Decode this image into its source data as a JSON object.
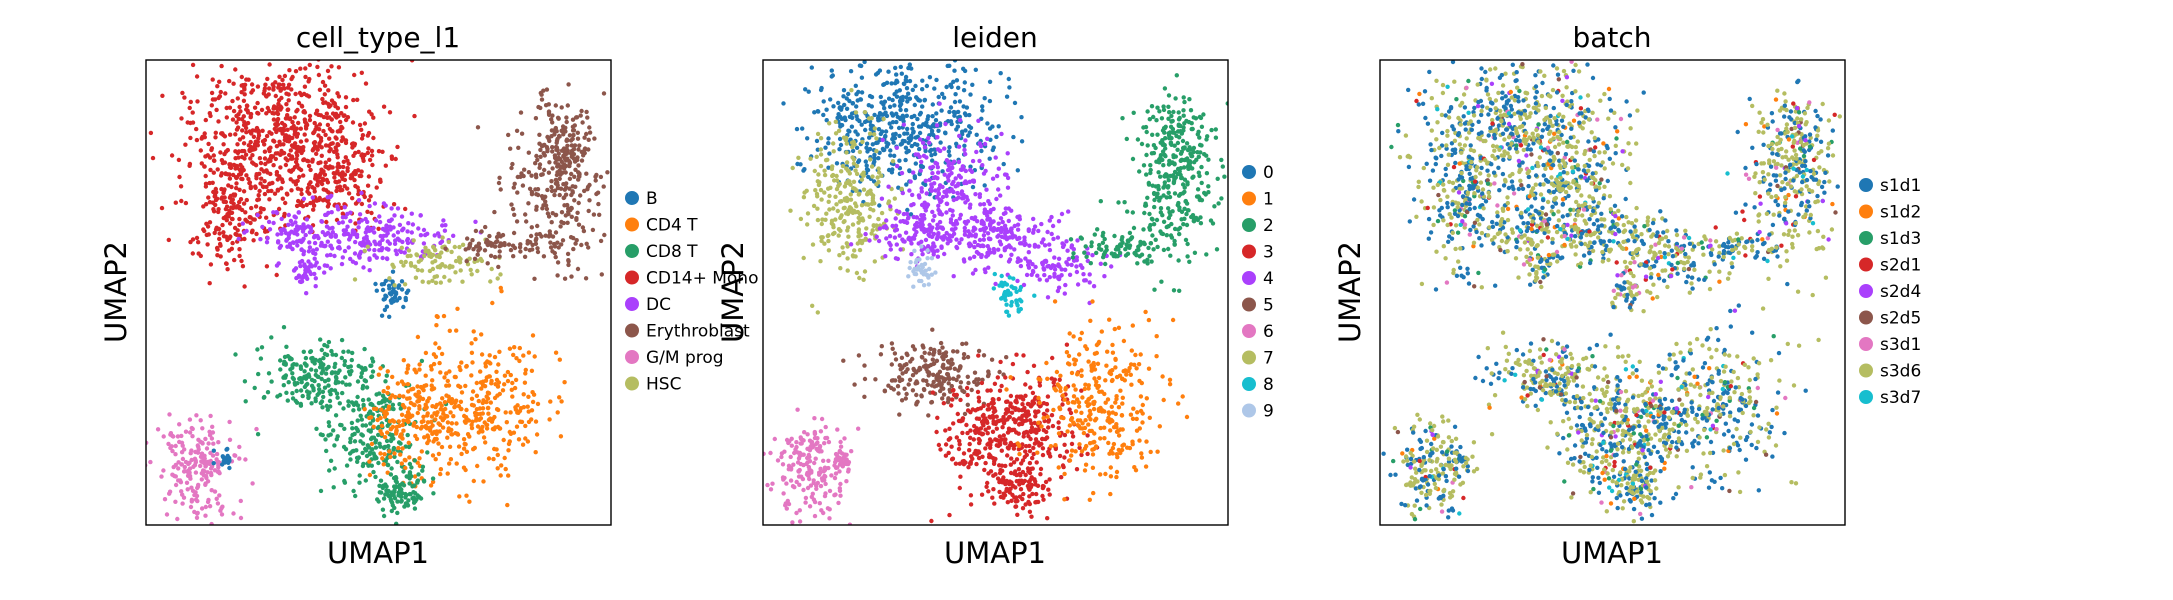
{
  "chart_data": [
    {
      "type": "scatter",
      "title": "cell_type_l1",
      "xlabel": "UMAP1",
      "ylabel": "UMAP2",
      "grid": false,
      "legend_position": "right",
      "series": [
        {
          "name": "B",
          "color": "#1f77b4"
        },
        {
          "name": "CD4 T",
          "color": "#ff7f0e"
        },
        {
          "name": "CD8 T",
          "color": "#279e68"
        },
        {
          "name": "CD14+ Mono",
          "color": "#d62728"
        },
        {
          "name": "DC",
          "color": "#aa40fc"
        },
        {
          "name": "Erythroblast",
          "color": "#8c564b"
        },
        {
          "name": "G/M prog",
          "color": "#e377c2"
        },
        {
          "name": "HSC",
          "color": "#b5bd61"
        }
      ]
    },
    {
      "type": "scatter",
      "title": "leiden",
      "xlabel": "UMAP1",
      "ylabel": "UMAP2",
      "grid": false,
      "legend_position": "right",
      "series": [
        {
          "name": "0",
          "color": "#1f77b4"
        },
        {
          "name": "1",
          "color": "#ff7f0e"
        },
        {
          "name": "2",
          "color": "#279e68"
        },
        {
          "name": "3",
          "color": "#d62728"
        },
        {
          "name": "4",
          "color": "#aa40fc"
        },
        {
          "name": "5",
          "color": "#8c564b"
        },
        {
          "name": "6",
          "color": "#e377c2"
        },
        {
          "name": "7",
          "color": "#b5bd61"
        },
        {
          "name": "8",
          "color": "#17becf"
        },
        {
          "name": "9",
          "color": "#aec7e8"
        }
      ]
    },
    {
      "type": "scatter",
      "title": "batch",
      "xlabel": "UMAP1",
      "ylabel": "UMAP2",
      "grid": false,
      "legend_position": "right",
      "series": [
        {
          "name": "s1d1",
          "color": "#1f77b4"
        },
        {
          "name": "s1d2",
          "color": "#ff7f0e"
        },
        {
          "name": "s1d3",
          "color": "#279e68"
        },
        {
          "name": "s2d1",
          "color": "#d62728"
        },
        {
          "name": "s2d4",
          "color": "#aa40fc"
        },
        {
          "name": "s2d5",
          "color": "#8c564b"
        },
        {
          "name": "s3d1",
          "color": "#e377c2"
        },
        {
          "name": "s3d6",
          "color": "#b5bd61"
        },
        {
          "name": "s3d7",
          "color": "#17becf"
        }
      ]
    }
  ]
}
